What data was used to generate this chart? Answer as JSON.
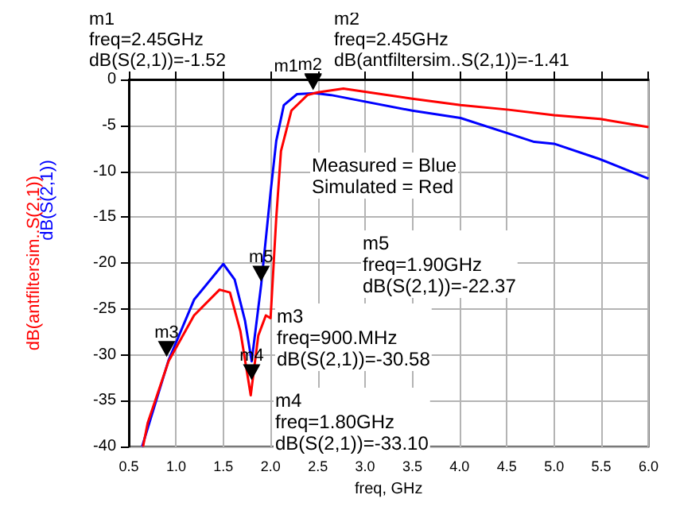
{
  "chart_data": {
    "type": "line",
    "xlabel": "freq, GHz",
    "ylabel": "dB(antfiltersim..S(2,1))",
    "xlim": [
      0.5,
      6.0
    ],
    "xticks": [
      {
        "value": 0.5,
        "label": "0.5"
      },
      {
        "value": 1,
        "label": "1.0"
      },
      {
        "value": 1.5,
        "label": "1.5"
      },
      {
        "value": 2,
        "label": "2.0"
      },
      {
        "value": 2.5,
        "label": "2.5"
      },
      {
        "value": 3,
        "label": "3.0"
      },
      {
        "value": 3.5,
        "label": "3.5"
      },
      {
        "value": 4,
        "label": "4.0"
      },
      {
        "value": 4.5,
        "label": "4.5"
      },
      {
        "value": 5,
        "label": "5.0"
      },
      {
        "value": 5.5,
        "label": "5.5"
      },
      {
        "value": 6,
        "label": "6.0"
      }
    ],
    "ylim": [
      -40,
      0
    ],
    "yticks": [
      -40,
      -35,
      -30,
      -25,
      -20,
      -15,
      -10,
      -5,
      0
    ],
    "grid": true,
    "marker": "none",
    "line_style": "solid",
    "series": [
      {
        "color": "#0000ff",
        "x": [
          0.64,
          0.92,
          1.19,
          1.5,
          1.62,
          1.73,
          1.8,
          1.9,
          2.0,
          2.06,
          2.14,
          2.28,
          2.47,
          2.64,
          3.5,
          4.01,
          4.52,
          4.79,
          5.0,
          5.49,
          6.0
        ],
        "values": [
          -40,
          -30.6,
          -24,
          -20.1,
          -21.8,
          -26.3,
          -30.7,
          -22.4,
          -12.3,
          -6.7,
          -2.8,
          -1.6,
          -1.5,
          -1.7,
          -3.4,
          -4.2,
          -5.9,
          -6.8,
          -7.0,
          -8.7,
          -10.8
        ]
      },
      {
        "color": "#ff0000",
        "x": [
          0.65,
          0.7,
          0.92,
          1.19,
          1.46,
          1.57,
          1.68,
          1.79,
          1.87,
          1.95,
          2.0,
          2.06,
          2.11,
          2.22,
          2.39,
          2.5,
          2.77,
          3.5,
          4.01,
          4.52,
          5.0,
          5.49,
          6.0
        ],
        "values": [
          -40,
          -37.4,
          -30.7,
          -25.7,
          -22.9,
          -23.2,
          -27.4,
          -34.4,
          -27.9,
          -25.7,
          -26,
          -15.1,
          -7.8,
          -3.4,
          -1.7,
          -1.4,
          -1.0,
          -2.1,
          -2.8,
          -3.3,
          -3.9,
          -4.3,
          -5.2
        ]
      }
    ],
    "annotations": [
      "m1\nfreq=2.45GHz\ndB(S(2,1))=-1.52",
      "m2\nfreq=2.45GHz\ndB(antfiltersim..S(2,1))=-1.41",
      "m3\nfreq=900.MHz\ndB(S(2,1))=-30.58",
      "m4\nfreq=1.80GHz\ndB(S(2,1))=-33.10",
      "m5\nfreq=1.90GHz\ndB(S(2,1))=-22.37",
      "Measured = Blue\nSimulated = Red",
      "dB(S(2,1))",
      {
        "text": "m1",
        "x": 2.45,
        "y": -1.52
      },
      {
        "text": "m2",
        "x": 2.45,
        "y": -1.41
      },
      {
        "text": "m3",
        "x": 0.9,
        "y": -30.58
      },
      {
        "text": "m4",
        "x": 1.8,
        "y": -33.1
      },
      {
        "text": "m5",
        "x": 1.9,
        "y": -22.37
      }
    ]
  }
}
